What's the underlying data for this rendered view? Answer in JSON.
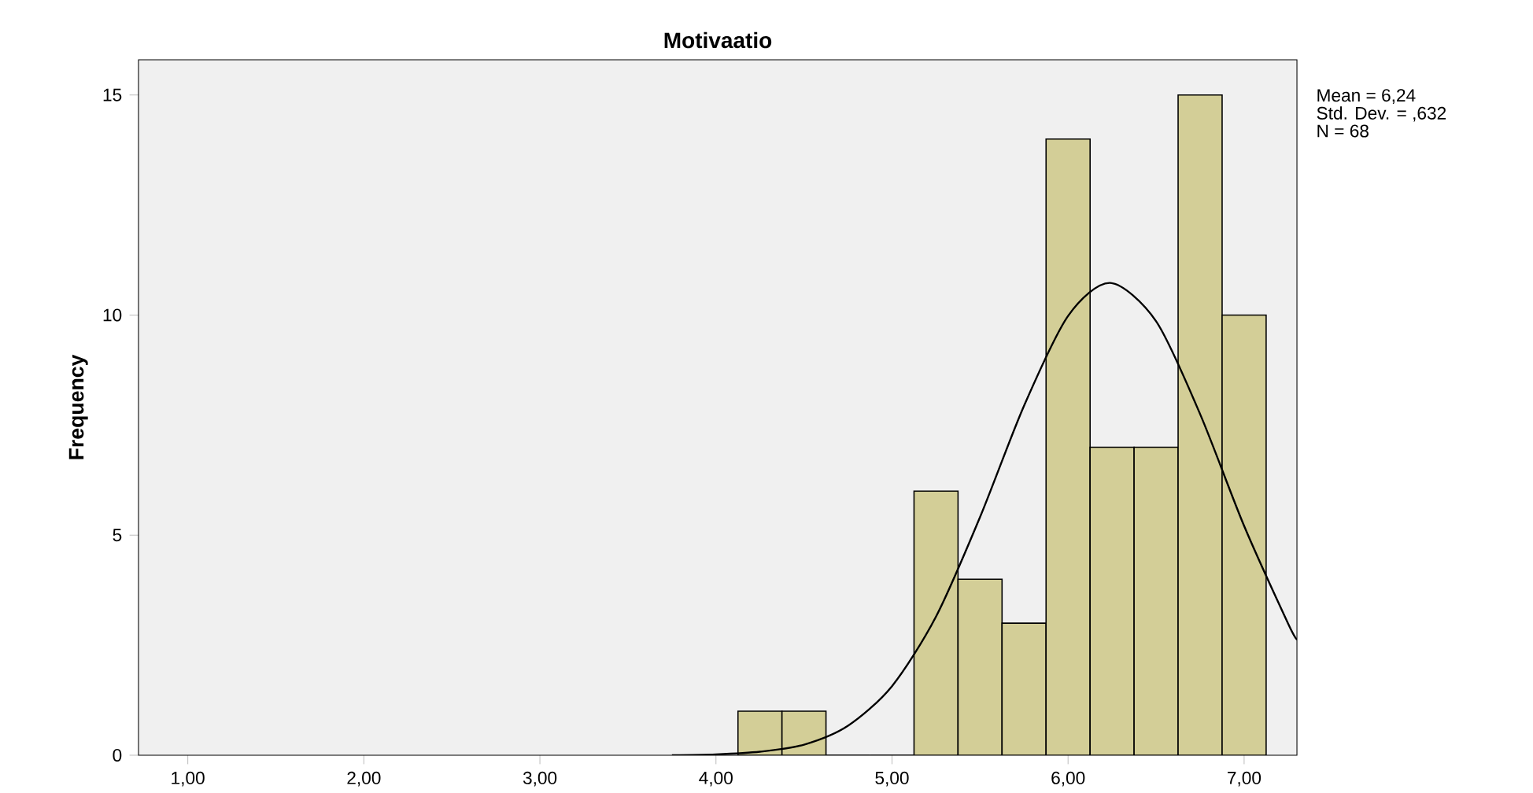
{
  "chart_data": {
    "type": "histogram",
    "title": "Motivaatio",
    "ylabel": "Frequency",
    "bins": [
      4.125,
      4.375,
      4.625,
      4.875,
      5.125,
      5.375,
      5.625,
      5.875,
      6.125,
      6.375,
      6.625,
      6.875,
      7.125
    ],
    "values": [
      1,
      1,
      0,
      0,
      6,
      4,
      3,
      14,
      7,
      7,
      15,
      10
    ],
    "color": "#d3ce97",
    "series": [
      {
        "type": "line",
        "color": "#000000",
        "x": [
          3.75,
          4.0,
          4.25,
          4.5,
          4.75,
          5.0,
          5.25,
          5.5,
          5.75,
          6.0,
          6.24,
          6.5,
          6.75,
          7.0,
          7.25,
          7.3
        ],
        "values": [
          0.0,
          0.02,
          0.08,
          0.24,
          0.67,
          1.57,
          3.15,
          5.41,
          7.94,
          9.98,
          10.73,
          9.86,
          7.75,
          5.21,
          2.99,
          2.63
        ]
      }
    ],
    "xlim": [
      0.72,
      7.3
    ],
    "ylim": [
      0,
      15.8
    ],
    "xticks": [
      {
        "value": 1,
        "label": "1,00"
      },
      {
        "value": 2,
        "label": "2,00"
      },
      {
        "value": 3,
        "label": "3,00"
      },
      {
        "value": 4,
        "label": "4,00"
      },
      {
        "value": 5,
        "label": "5,00"
      },
      {
        "value": 6,
        "label": "6,00"
      },
      {
        "value": 7,
        "label": "7,00"
      }
    ],
    "yticks": [
      0,
      5,
      10,
      15
    ],
    "annotations": [
      "Mean = 6,24",
      "Std. Dev. = ,632",
      "N = 68"
    ]
  }
}
